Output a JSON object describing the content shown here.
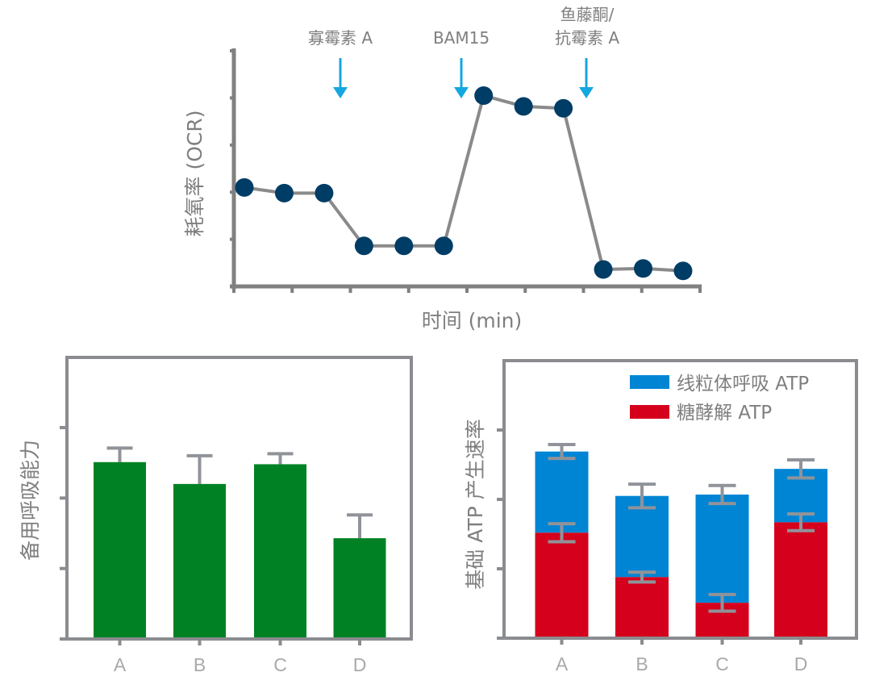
{
  "colors": {
    "axis": "#808080",
    "frame": "#8a8c90",
    "line": "#8a8a8a",
    "marker": "#003d66",
    "arrow": "#14a7e0",
    "green": "#008224",
    "blue": "#0085d4",
    "red": "#d5001c",
    "errorbar": "#909399",
    "text": "#7b7b7b",
    "tick_text": "#a8a8a8"
  },
  "chart_data": [
    {
      "id": "ocr-timecourse",
      "type": "line",
      "title": "",
      "xlabel": "时间 (min)",
      "ylabel": "耗氧率 (OCR)",
      "x": [
        1,
        2,
        3,
        4,
        5,
        6,
        7,
        8,
        9,
        10,
        11,
        12
      ],
      "series": [
        {
          "name": "OCR",
          "values": [
            2.1,
            1.98,
            1.98,
            0.86,
            0.86,
            0.86,
            4.05,
            3.82,
            3.78,
            0.36,
            0.38,
            0.33
          ]
        }
      ],
      "ylim": [
        0,
        5
      ],
      "xlim": [
        0.75,
        12.6
      ],
      "x_tick_count": 9,
      "y_tick_count": 6,
      "grid": false,
      "annotations": [
        {
          "label_lines": [
            "寡霉素 A"
          ],
          "x_between": [
            3,
            4
          ],
          "type": "down-arrow"
        },
        {
          "label_lines": [
            "BAM15"
          ],
          "x_between": [
            6,
            7
          ],
          "type": "down-arrow"
        },
        {
          "label_lines": [
            "鱼藤酮/",
            "抗霉素 A"
          ],
          "x_between": [
            9,
            10
          ],
          "type": "down-arrow"
        }
      ]
    },
    {
      "id": "spare-respiratory-capacity",
      "type": "bar",
      "title": "",
      "xlabel": "",
      "ylabel": "备用呼吸能力",
      "categories": [
        "A",
        "B",
        "C",
        "D"
      ],
      "values": [
        2.51,
        2.2,
        2.48,
        1.43
      ],
      "error_upper": [
        2.71,
        2.6,
        2.63,
        1.76
      ],
      "ylim": [
        0,
        4
      ],
      "y_tick_count": 5,
      "grid": false,
      "legend": null
    },
    {
      "id": "basal-atp-production-rate",
      "type": "bar",
      "stacked": true,
      "title": "",
      "xlabel": "",
      "ylabel": "基础 ATP 产生速率",
      "categories": [
        "A",
        "B",
        "C",
        "D"
      ],
      "series": [
        {
          "name": "糖酵解 ATP",
          "values": [
            1.52,
            0.88,
            0.51,
            1.67
          ],
          "error": [
            0.13,
            0.07,
            0.12,
            0.12
          ]
        },
        {
          "name": "线粒体呼吸 ATP",
          "values": [
            1.17,
            1.17,
            1.56,
            0.77
          ],
          "error": [
            0.1,
            0.17,
            0.13,
            0.13
          ]
        }
      ],
      "totals": [
        2.69,
        2.05,
        2.07,
        2.44
      ],
      "ylim": [
        0,
        4
      ],
      "y_tick_count": 5,
      "grid": false,
      "legend": {
        "position": "top-right",
        "items": [
          {
            "label": "线粒体呼吸 ATP",
            "color": "#0085d4"
          },
          {
            "label": "糖酵解 ATP",
            "color": "#d5001c"
          }
        ]
      }
    }
  ],
  "labels": {
    "top_chart": {
      "ylabel": "耗氧率 (OCR)",
      "xlabel": "时间 (min)",
      "annotation_1": "寡霉素 A",
      "annotation_2": "BAM15",
      "annotation_3_line1": "鱼藤酮/",
      "annotation_3_line2": "抗霉素 A"
    },
    "left_chart": {
      "ylabel": "备用呼吸能力",
      "categories": [
        "A",
        "B",
        "C",
        "D"
      ]
    },
    "right_chart": {
      "ylabel": "基础 ATP 产生速率",
      "legend_mito": "线粒体呼吸 ATP",
      "legend_glyco": "糖酵解 ATP",
      "categories": [
        "A",
        "B",
        "C",
        "D"
      ]
    }
  }
}
